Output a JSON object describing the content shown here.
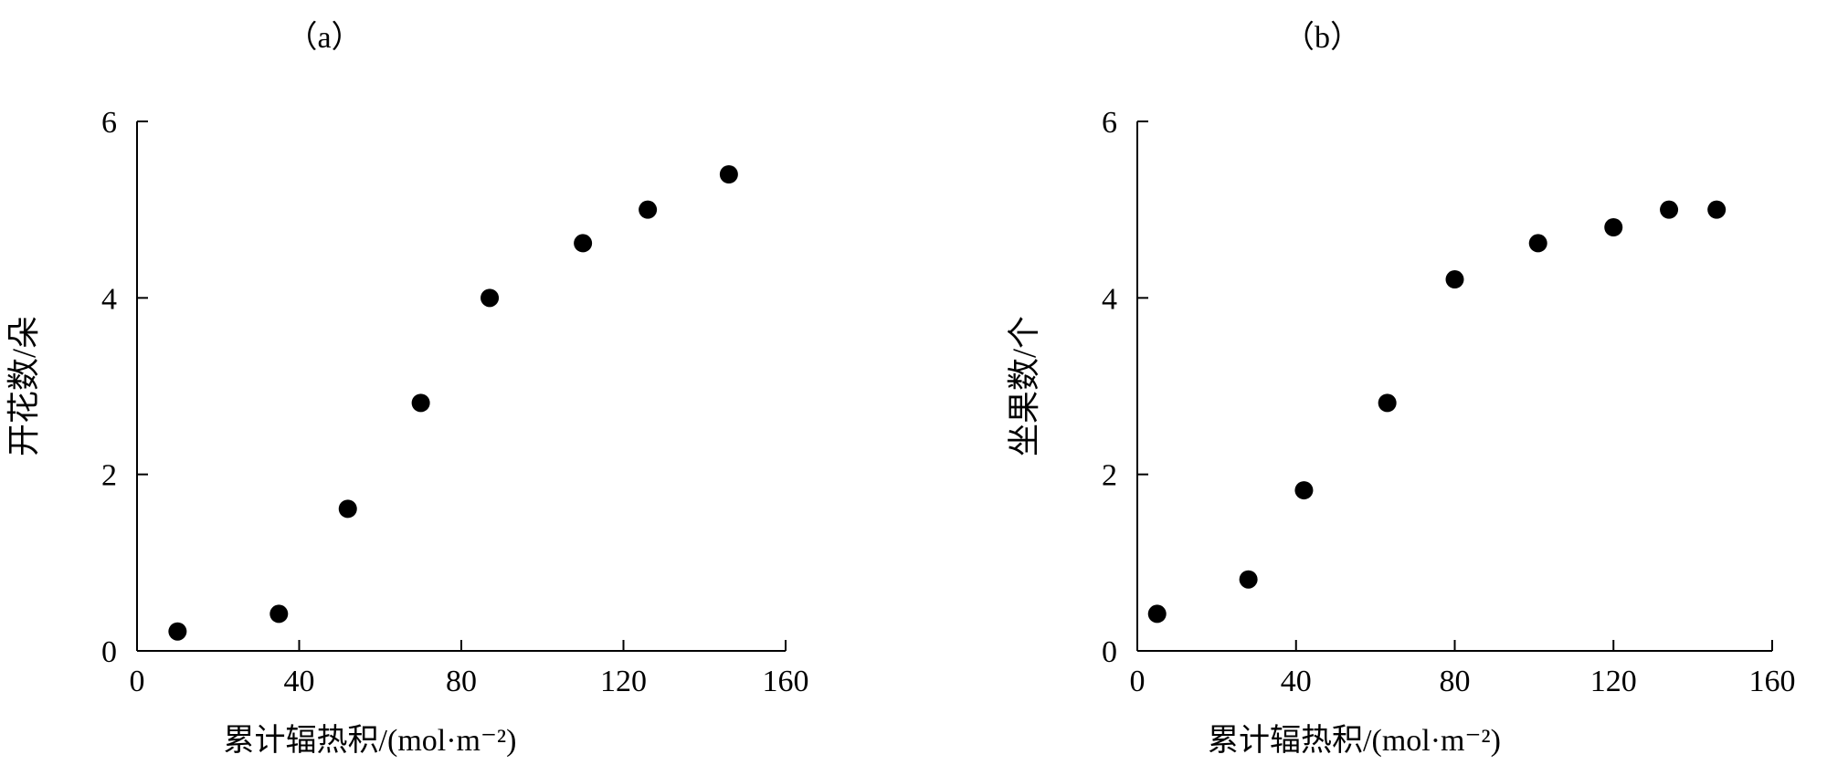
{
  "chart_data": [
    {
      "type": "scatter",
      "panel_label": "（a）",
      "xlabel": "累计辐热积/(mol·m⁻²)",
      "ylabel": "开花数/朵",
      "xlim": [
        0,
        160
      ],
      "ylim": [
        0,
        6
      ],
      "xticks": [
        "0",
        "40",
        "80",
        "120",
        "160"
      ],
      "yticks": [
        "0",
        "2",
        "4",
        "6"
      ],
      "grid": false,
      "series": [
        {
          "x": [
            10,
            35,
            52,
            70,
            87,
            110,
            126,
            146
          ],
          "y": [
            0.22,
            0.42,
            1.61,
            2.81,
            4.0,
            4.62,
            5.0,
            5.4
          ]
        }
      ]
    },
    {
      "type": "scatter",
      "panel_label": "（b）",
      "xlabel": "累计辐热积/(mol·m⁻²)",
      "ylabel": "坐果数/个",
      "xlim": [
        0,
        160
      ],
      "ylim": [
        0,
        6
      ],
      "xticks": [
        "0",
        "40",
        "80",
        "120",
        "160"
      ],
      "yticks": [
        "0",
        "2",
        "4",
        "6"
      ],
      "grid": false,
      "series": [
        {
          "x": [
            5,
            28,
            42,
            63,
            80,
            101,
            120,
            134,
            146
          ],
          "y": [
            0.42,
            0.81,
            1.82,
            2.81,
            4.21,
            4.62,
            4.8,
            5.0,
            5.0
          ]
        }
      ]
    }
  ]
}
